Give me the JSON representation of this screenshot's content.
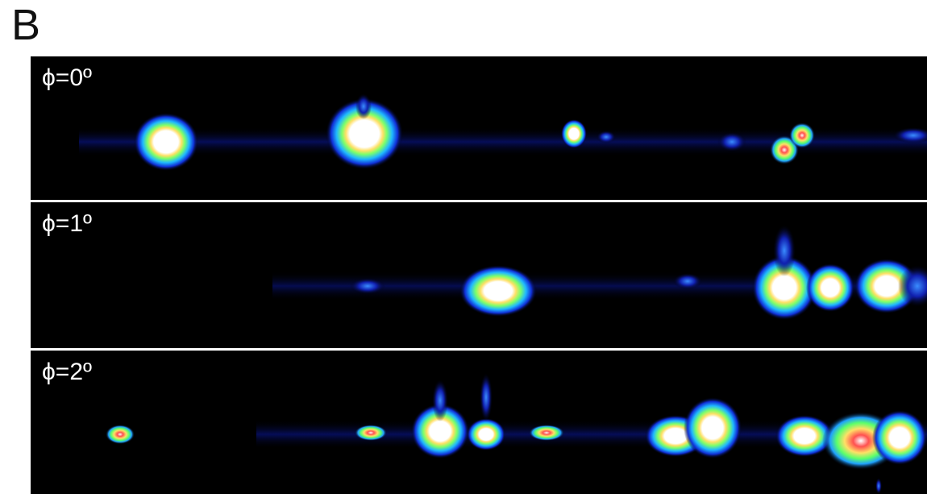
{
  "figure": {
    "panel_letter": "B",
    "panels": [
      {
        "label": "ϕ=0º"
      },
      {
        "label": "ϕ=1º"
      },
      {
        "label": "ϕ=2º"
      }
    ]
  }
}
